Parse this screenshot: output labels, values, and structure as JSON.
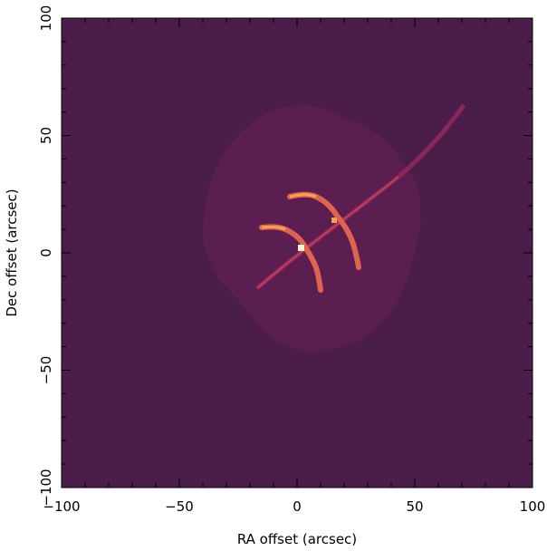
{
  "chart_data": {
    "type": "image",
    "xlabel": "RA offset (arcsec)",
    "ylabel": "Dec offset (arcsec)",
    "xlim": [
      -100,
      100
    ],
    "ylim": [
      -100,
      100
    ],
    "xticks": [
      {
        "value": -100,
        "label": "−100"
      },
      {
        "value": -50,
        "label": "−50"
      },
      0,
      50,
      100
    ],
    "yticks": [
      {
        "value": -100,
        "label": "−100"
      },
      {
        "value": -50,
        "label": "−50"
      },
      0,
      50,
      100
    ],
    "background": "#4b1d4b"
  }
}
